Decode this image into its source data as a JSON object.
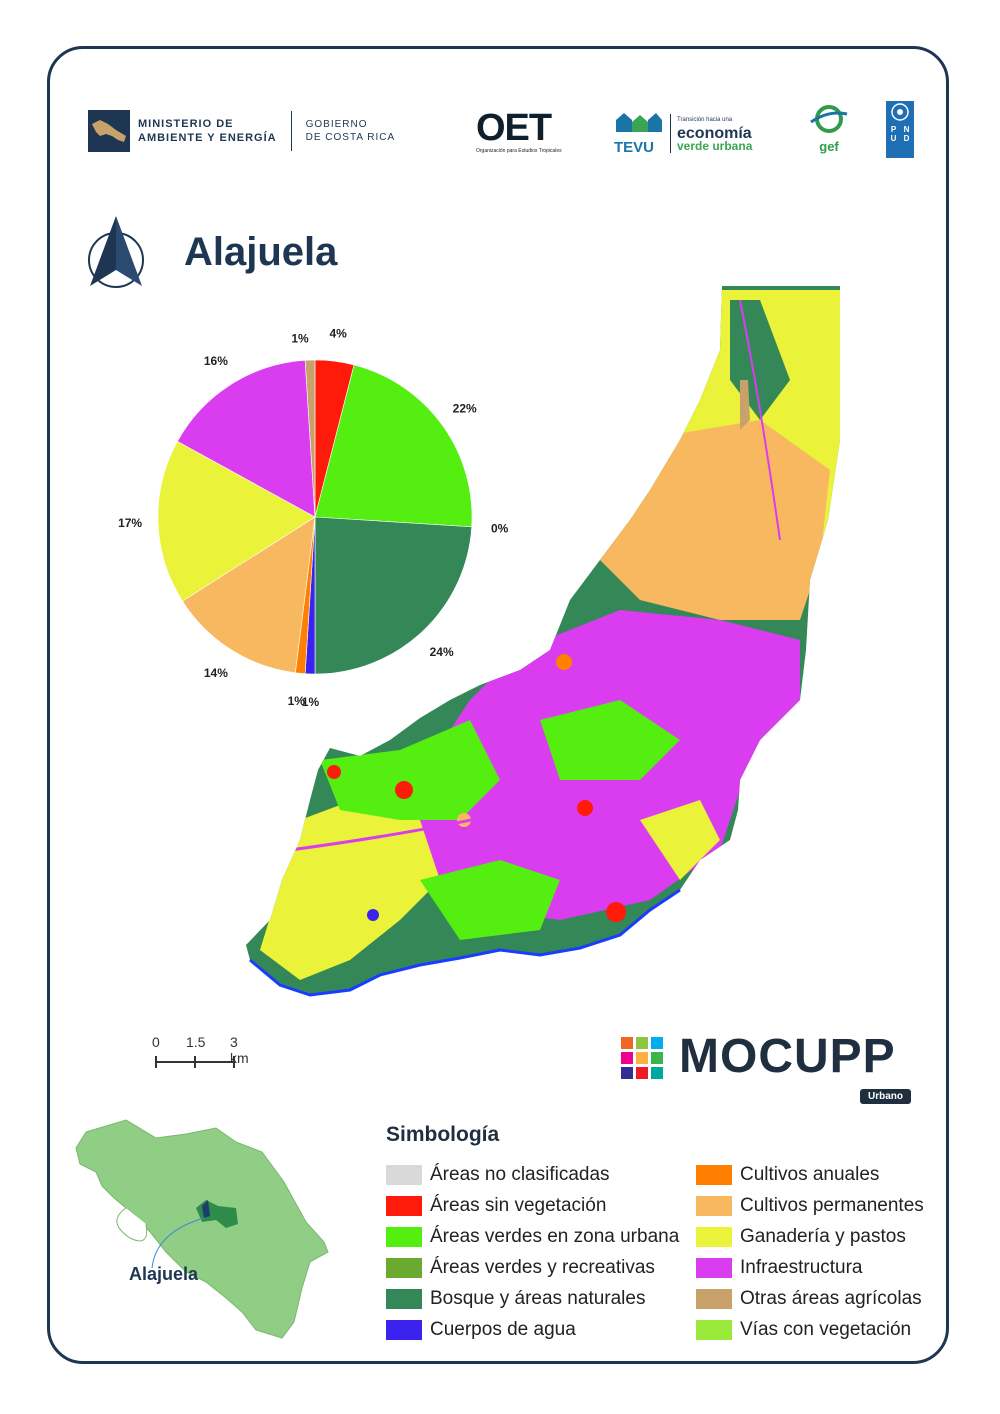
{
  "header": {
    "mae_line1": "MINISTERIO DE",
    "mae_line2": "AMBIENTE Y ENERGÍA",
    "gob_line1": "GOBIERNO",
    "gob_line2": "DE COSTA RICA",
    "oet_name": "OET",
    "oet_sub": "Organización para Estudios Tropicales",
    "tevu_name": "TEVU",
    "tevu_small": "Transición hacia una",
    "tevu_eco": "economía",
    "tevu_verde": "verde urbana",
    "gef_name": "gef",
    "pnud_letters": [
      "P",
      "N",
      "U",
      "D"
    ]
  },
  "title": "Alajuela",
  "chart_data": {
    "type": "pie",
    "slices": [
      {
        "category": "Áreas no clasificadas",
        "value": 0,
        "label": "",
        "color": "#d9d9d9"
      },
      {
        "category": "Áreas sin vegetación",
        "value": 4,
        "label": "4%",
        "color": "#ff1a0a"
      },
      {
        "category": "Áreas verdes en zona urbana",
        "value": 22,
        "label": "22%",
        "color": "#55ee11"
      },
      {
        "category": "Áreas verdes y recreativas",
        "value": 0,
        "label": "0%",
        "color": "#6aaa2e"
      },
      {
        "category": "Bosque y áreas naturales",
        "value": 24,
        "label": "24%",
        "color": "#348756"
      },
      {
        "category": "Cuerpos de agua",
        "value": 1,
        "label": "1%",
        "color": "#3b22ee"
      },
      {
        "category": "Cultivos anuales",
        "value": 1,
        "label": "1%",
        "color": "#ff8000"
      },
      {
        "category": "Cultivos permanentes",
        "value": 14,
        "label": "14%",
        "color": "#f7b85f"
      },
      {
        "category": "Ganadería y pastos",
        "value": 17,
        "label": "17%",
        "color": "#eaf23a"
      },
      {
        "category": "Infraestructura",
        "value": 16,
        "label": "16%",
        "color": "#da3df0"
      },
      {
        "category": "Otras áreas agrícolas",
        "value": 1,
        "label": "1%",
        "color": "#c9a26b"
      }
    ]
  },
  "scale_bar": {
    "ticks": [
      "0",
      "1.5",
      "3 km"
    ]
  },
  "mocupp": {
    "name": "MOCUPP",
    "badge": "Urbano",
    "tile_colors": [
      "#f26522",
      "#8dc63f",
      "#00aeef",
      "#ec008c",
      "#fbb040",
      "#39b54a",
      "#2e3192",
      "#ed1c24",
      "#00a99d"
    ]
  },
  "inset": {
    "label": "Alajuela",
    "land_color": "#8fce84",
    "highlight_color": "#2e8b4a",
    "highlight_dark": "#1b3f6a"
  },
  "legend": {
    "title": "Simbología",
    "left": [
      {
        "label": "Áreas no clasificadas",
        "color": "#d9d9d9"
      },
      {
        "label": "Áreas sin vegetación",
        "color": "#ff1a0a"
      },
      {
        "label": "Áreas verdes en zona urbana",
        "color": "#55ee11"
      },
      {
        "label": "Áreas verdes y recreativas",
        "color": "#6aaa2e"
      },
      {
        "label": "Bosque y áreas naturales",
        "color": "#348756"
      },
      {
        "label": "Cuerpos de agua",
        "color": "#3b22ee"
      }
    ],
    "right": [
      {
        "label": "Cultivos anuales",
        "color": "#ff8000"
      },
      {
        "label": "Cultivos permanentes",
        "color": "#f7b85f"
      },
      {
        "label": "Ganadería y pastos",
        "color": "#eaf23a"
      },
      {
        "label": "Infraestructura",
        "color": "#da3df0"
      },
      {
        "label": "Otras áreas agrícolas",
        "color": "#c9a26b"
      },
      {
        "label": "Vías con vegetación",
        "color": "#9ae83a"
      }
    ]
  }
}
